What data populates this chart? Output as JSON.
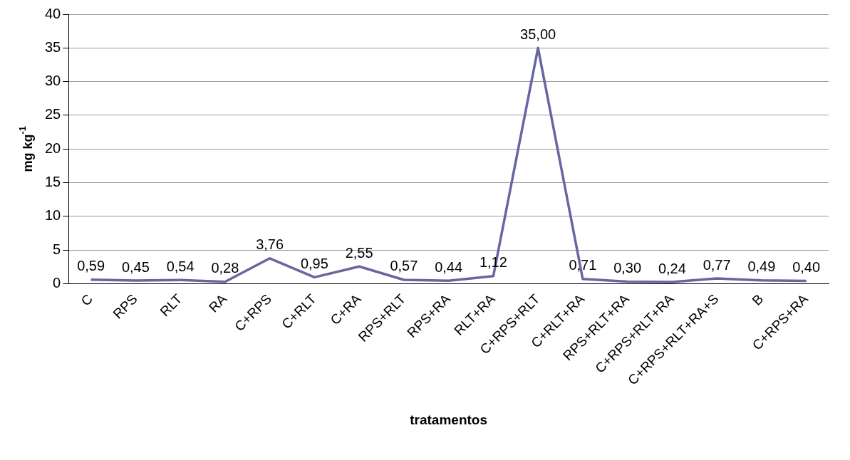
{
  "chart_data": {
    "type": "line",
    "xlabel": "tratamentos",
    "ylabel": "mg kg$^{-1}$",
    "categories": [
      "C",
      "RPS",
      "RLT",
      "RA",
      "C+RPS",
      "C+RLT",
      "C+RA",
      "RPS+RLT",
      "RPS+RA",
      "RLT+RA",
      "C+RPS+RLT",
      "C+RLT+RA",
      "RPS+RLT+RA",
      "C+RPS+RLT+RA",
      "C+RPS+RLT+RA+S",
      "B",
      "C+RPS+RA"
    ],
    "values": [
      0.59,
      0.45,
      0.54,
      0.28,
      3.76,
      0.95,
      2.55,
      0.57,
      0.44,
      1.12,
      35.0,
      0.71,
      0.3,
      0.24,
      0.77,
      0.49,
      0.4
    ],
    "value_labels": [
      "0,59",
      "0,45",
      "0,54",
      "0,28",
      "3,76",
      "0,95",
      "2,55",
      "0,57",
      "0,44",
      "1,12",
      "35,00",
      "0,71",
      "0,30",
      "0,24",
      "0,77",
      "0,49",
      "0,40"
    ],
    "color": "#6666a0",
    "ylim": [
      0,
      40
    ],
    "yticks": [
      0,
      5,
      10,
      15,
      20,
      25,
      30,
      35,
      40
    ],
    "grid": "y",
    "legend": false,
    "marker": "none",
    "line_style": "solid"
  }
}
